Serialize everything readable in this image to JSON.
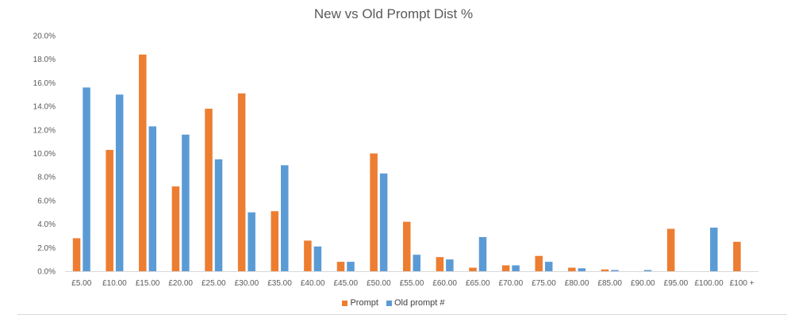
{
  "chart_data": {
    "type": "bar",
    "title": "New vs Old Prompt Dist %",
    "categories": [
      "£5.00",
      "£10.00",
      "£15.00",
      "£20.00",
      "£25.00",
      "£30.00",
      "£35.00",
      "£40.00",
      "£45.00",
      "£50.00",
      "£55.00",
      "£60.00",
      "£65.00",
      "£70.00",
      "£75.00",
      "£80.00",
      "£85.00",
      "£90.00",
      "£95.00",
      "£100.00",
      "£100 +"
    ],
    "series": [
      {
        "name": "Prompt",
        "color": "#ED7D31",
        "values": [
          2.8,
          10.3,
          18.4,
          7.2,
          13.8,
          15.1,
          5.1,
          2.6,
          0.8,
          10.0,
          4.2,
          1.2,
          0.3,
          0.5,
          1.3,
          0.3,
          0.15,
          0.0,
          3.6,
          0.0,
          2.5
        ]
      },
      {
        "name": "Old prompt #",
        "color": "#5B9BD5",
        "values": [
          15.6,
          15.0,
          12.3,
          11.6,
          9.5,
          5.0,
          9.0,
          2.1,
          0.8,
          8.3,
          1.4,
          1.0,
          2.9,
          0.5,
          0.8,
          0.25,
          0.1,
          0.1,
          0.0,
          3.7,
          0.0
        ]
      }
    ],
    "ylim": [
      0,
      20
    ],
    "yticks": [
      "0.0%",
      "2.0%",
      "4.0%",
      "6.0%",
      "8.0%",
      "10.0%",
      "12.0%",
      "14.0%",
      "16.0%",
      "18.0%",
      "20.0%"
    ],
    "xlabel": "",
    "ylabel": "",
    "grid": false,
    "legend_position": "bottom"
  }
}
